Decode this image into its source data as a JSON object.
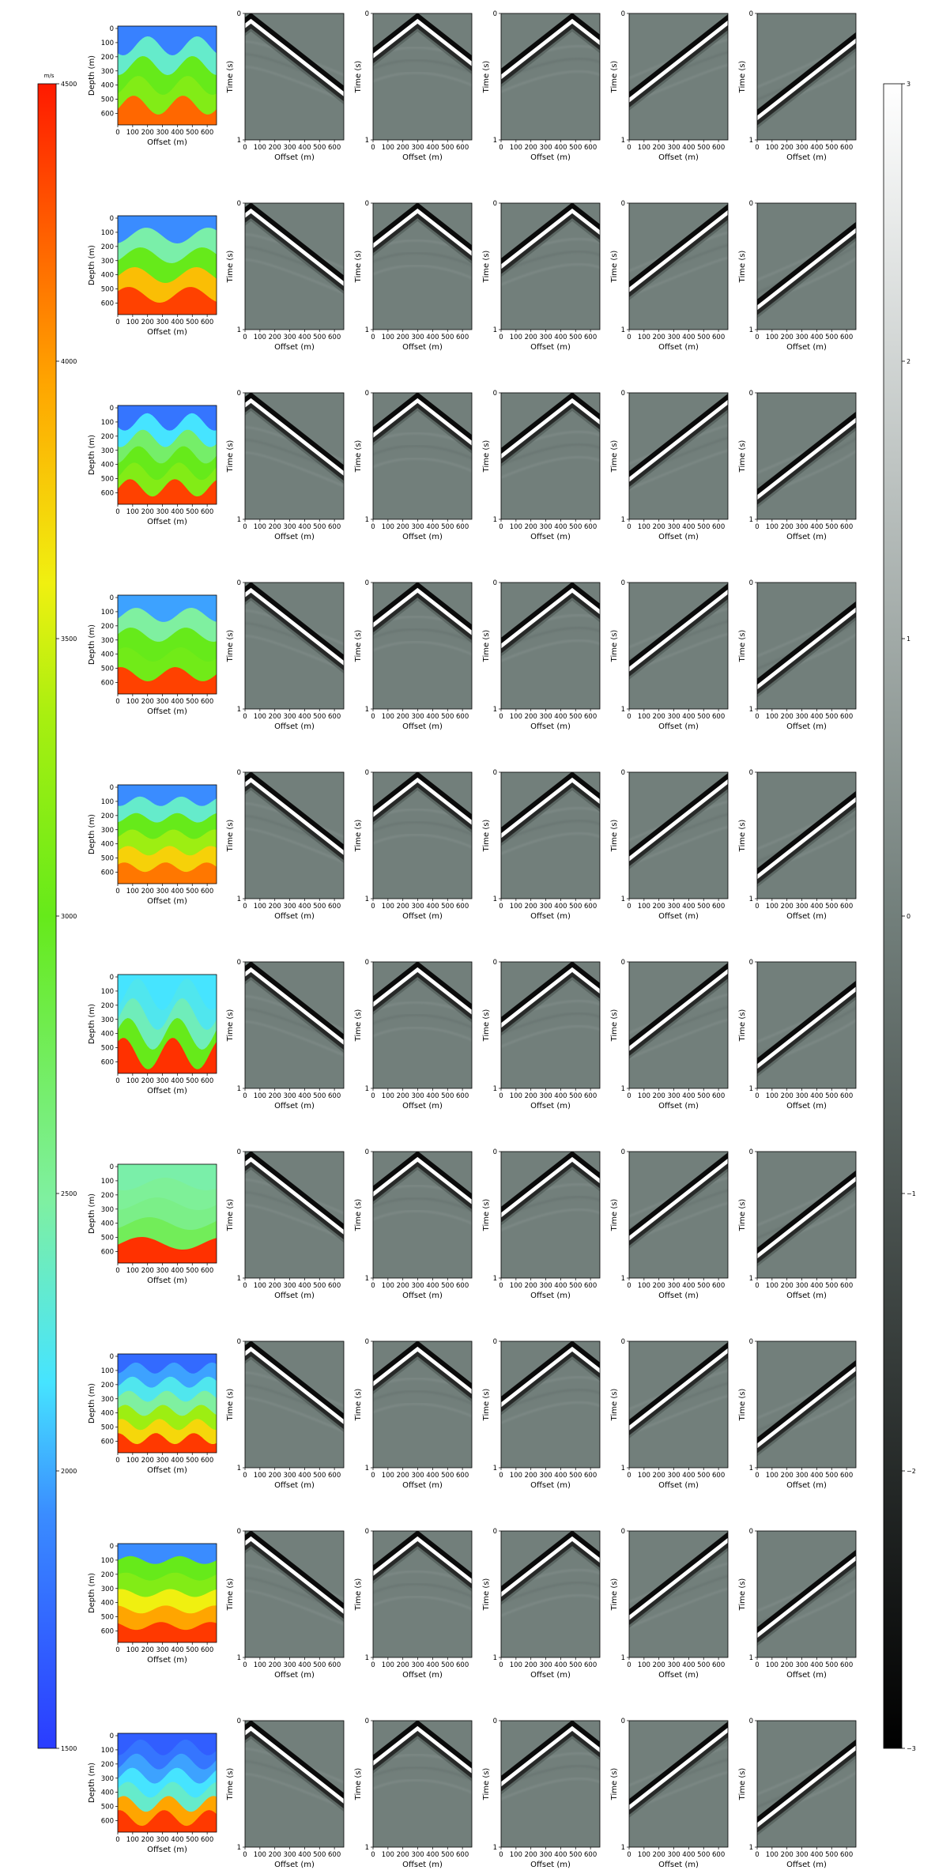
{
  "figure": {
    "rows": 10,
    "shots_per_row": 5,
    "velocity_panel": {
      "xlabel": "Offset (m)",
      "ylabel": "Depth (m)",
      "xticks": [
        "0",
        "100",
        "200",
        "300",
        "400",
        "500",
        "600"
      ],
      "yticks": [
        "0",
        "100",
        "200",
        "300",
        "400",
        "500",
        "600"
      ]
    },
    "gather_panel": {
      "xlabel": "Offset (m)",
      "ylabel": "Time (s)",
      "xticks": [
        "0",
        "100",
        "200",
        "300",
        "400",
        "500",
        "600"
      ],
      "yticks": [
        "0",
        "1"
      ],
      "source_offsets_m": [
        0,
        300,
        500,
        700,
        1000
      ]
    },
    "velocity_colorbar": {
      "unit": "m/s",
      "min": 1500,
      "max": 4500,
      "ticks": [
        "1500",
        "2000",
        "2500",
        "3000",
        "3500",
        "4000",
        "4500"
      ],
      "colormap": "jet"
    },
    "amplitude_colorbar": {
      "min": -3,
      "max": 3,
      "ticks": [
        "−3",
        "−2",
        "−1",
        "0",
        "1",
        "2",
        "3"
      ],
      "colormap": "gray"
    },
    "colors": {
      "gather_background": "#727f7b",
      "text": "#000000"
    }
  }
}
